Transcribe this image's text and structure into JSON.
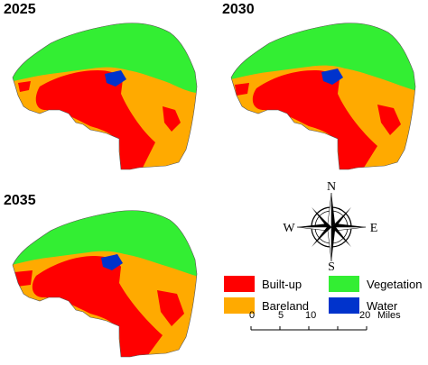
{
  "panels": [
    {
      "year": "2025"
    },
    {
      "year": "2030"
    },
    {
      "year": "2035"
    }
  ],
  "compass": {
    "north": "N",
    "south": "S",
    "east": "E",
    "west": "W"
  },
  "legend": [
    {
      "label": "Built-up",
      "color": "#ff0000"
    },
    {
      "label": "Vegetation",
      "color": "#33ee33"
    },
    {
      "label": "Bareland",
      "color": "#ffaa00"
    },
    {
      "label": "Water",
      "color": "#0033cc"
    }
  ],
  "scale_bar": {
    "ticks": [
      "0",
      "5",
      "10",
      "20"
    ],
    "unit": "Miles"
  }
}
